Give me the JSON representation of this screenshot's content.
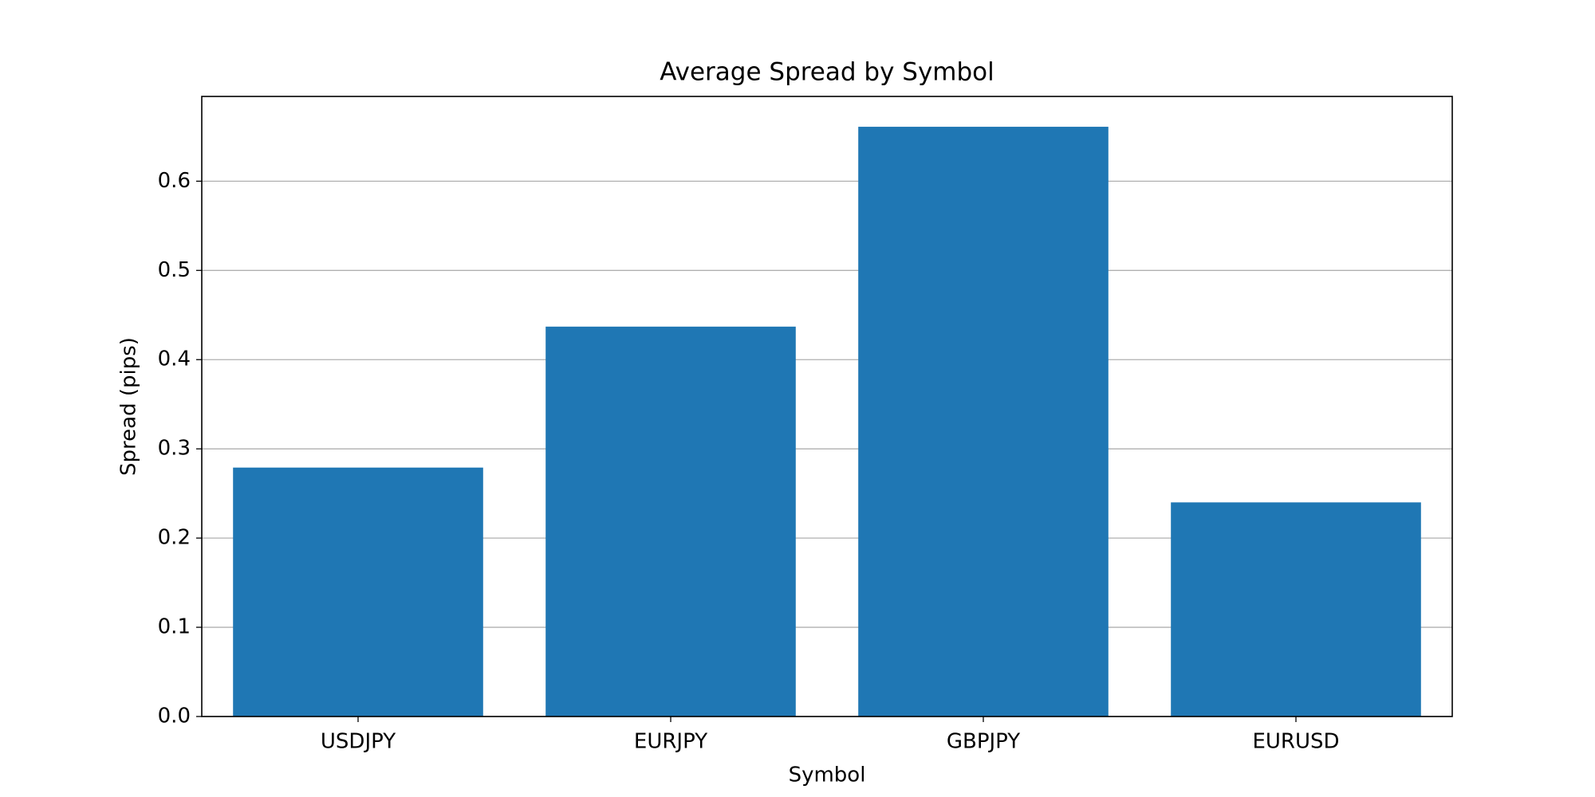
{
  "chart_data": {
    "type": "bar",
    "title": "Average Spread by Symbol",
    "x_label": "Symbol",
    "y_label": "Spread (pips)",
    "categories": [
      "USDJPY",
      "EURJPY",
      "GBPJPY",
      "EURUSD"
    ],
    "values": [
      0.279,
      0.437,
      0.661,
      0.24
    ],
    "color": "#1f77b4",
    "ylim": [
      0,
      0.695
    ],
    "yticks": [
      {
        "value": 0,
        "label": "0.0"
      },
      0.1,
      0.2,
      0.3,
      0.4,
      0.5,
      0.6
    ],
    "grid": "y"
  }
}
